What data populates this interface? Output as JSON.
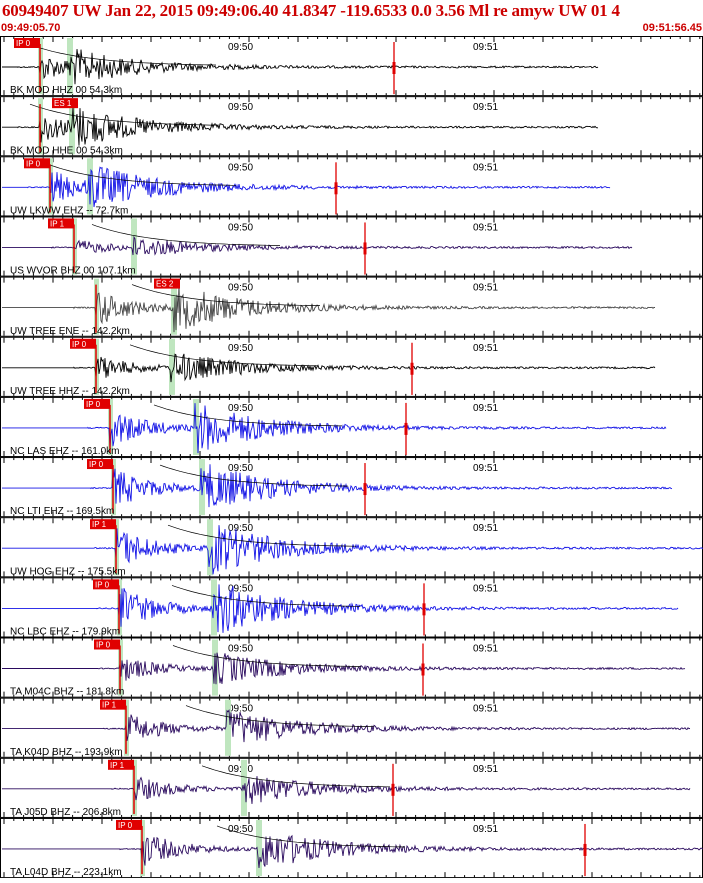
{
  "header": {
    "title": "60949407 UW Jan 22, 2015 09:49:06.40   41.8347 -119.6533  0.0 3.56 Ml re amyw UW 01    4",
    "start_time": "09:49:05.70",
    "end_time": "09:51:56.45"
  },
  "tick_labels": [
    "09:50",
    "09:51"
  ],
  "colors": {
    "pick": "#e00000",
    "window": "#bfe6bf",
    "black": "#000000",
    "blue": "#1414e6",
    "navy": "#2a0a5e",
    "gray": "#444444"
  },
  "traces": [
    {
      "label": "BK MOD HHZ 00 54.3km",
      "pick_p": "IP 0",
      "pick_s": "",
      "color": "black",
      "p": 40,
      "s": 68,
      "amp": 17,
      "end": 598,
      "red": 394
    },
    {
      "label": "BK MOD HHE 00 54.3km",
      "pick_p": "",
      "pick_s": "ES 1",
      "color": "black",
      "p": 40,
      "s": 70,
      "amp": 20,
      "end": 598,
      "red": 0
    },
    {
      "label": "UW LKWW EHZ -- 72.7km",
      "pick_p": "IP 0",
      "pick_s": "",
      "color": "blue",
      "p": 50,
      "s": 88,
      "amp": 22,
      "end": 610,
      "red": 336
    },
    {
      "label": "US WVOR BHZ 00 107.1km",
      "pick_p": "IP 1",
      "pick_s": "",
      "color": "navy",
      "p": 74,
      "s": 132,
      "amp": 10,
      "end": 632,
      "red": 365
    },
    {
      "label": "UW TREE ENE -- 142.2km",
      "pick_p": "",
      "pick_s": "ES 2",
      "color": "gray",
      "p": 96,
      "s": 172,
      "amp": 24,
      "end": 655,
      "red": 0
    },
    {
      "label": "UW TREE HHZ -- 142.2km",
      "pick_p": "IP 0",
      "pick_s": "",
      "color": "black",
      "p": 96,
      "s": 170,
      "amp": 16,
      "end": 655,
      "red": 412
    },
    {
      "label": "NC LAS EHZ -- 161.0km",
      "pick_p": "IP 0",
      "pick_s": "",
      "color": "blue",
      "p": 110,
      "s": 194,
      "amp": 26,
      "end": 666,
      "red": 406
    },
    {
      "label": "NC LTI EHZ -- 169.5km",
      "pick_p": "IP 0",
      "pick_s": "",
      "color": "blue",
      "p": 113,
      "s": 200,
      "amp": 26,
      "end": 672,
      "red": 365
    },
    {
      "label": "UW HOG EHZ -- 175.5km",
      "pick_p": "IP 1",
      "pick_s": "",
      "color": "blue",
      "p": 116,
      "s": 208,
      "amp": 27,
      "end": 703,
      "red": 0
    },
    {
      "label": "NC LBC EHZ -- 179.9km",
      "pick_p": "IP 0",
      "pick_s": "",
      "color": "blue",
      "p": 119,
      "s": 212,
      "amp": 28,
      "end": 678,
      "red": 424
    },
    {
      "label": "TA M04C BHZ -- 181.8km",
      "pick_p": "IP 0",
      "pick_s": "",
      "color": "navy",
      "p": 120,
      "s": 213,
      "amp": 17,
      "end": 685,
      "red": 423
    },
    {
      "label": "TA K04D BHZ -- 193.9km",
      "pick_p": "IP 1",
      "pick_s": "",
      "color": "navy",
      "p": 126,
      "s": 226,
      "amp": 20,
      "end": 690,
      "red": 0
    },
    {
      "label": "TA J05D BHZ -- 206.8km",
      "pick_p": "IP 1",
      "pick_s": "",
      "color": "navy",
      "p": 134,
      "s": 242,
      "amp": 17,
      "end": 690,
      "red": 393
    },
    {
      "label": "TA L04D BHZ -- 223.1km",
      "pick_p": "IP 0",
      "pick_s": "",
      "color": "navy",
      "p": 142,
      "s": 257,
      "amp": 22,
      "end": 703,
      "red": 585
    }
  ]
}
